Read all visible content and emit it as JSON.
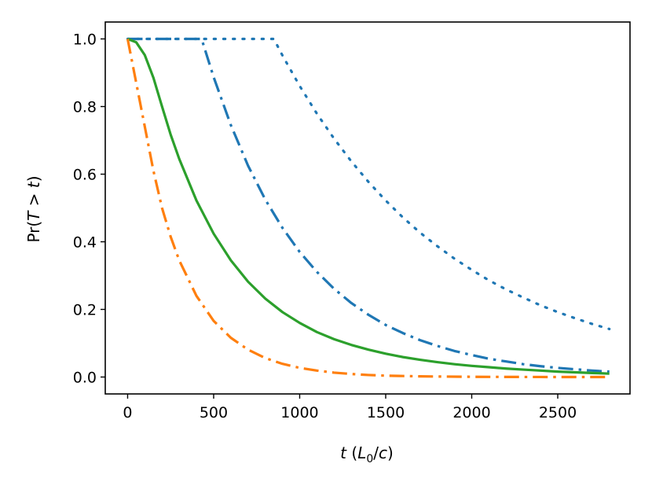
{
  "chart_data": {
    "type": "line",
    "title": "",
    "xlabel": {
      "italic_var": "t",
      "open": " (",
      "sym": "L",
      "sub": "0",
      "rest": "/",
      "italic_c": "c",
      "close": ")"
    },
    "ylabel": {
      "prefix": "Pr(",
      "T": "T",
      "op": " > ",
      "t": "t",
      "suffix": ")"
    },
    "xlim": [
      -130,
      2920
    ],
    "ylim": [
      -0.05,
      1.05
    ],
    "xticks": [
      0,
      500,
      1000,
      1500,
      2000,
      2500
    ],
    "xtick_labels": [
      "0",
      "500",
      "1000",
      "1500",
      "2000",
      "2500"
    ],
    "yticks": [
      0.0,
      0.2,
      0.4,
      0.6,
      0.8,
      1.0
    ],
    "ytick_labels": [
      "0.0",
      "0.2",
      "0.4",
      "0.6",
      "0.8",
      "1.0"
    ],
    "grid": false,
    "legend": null,
    "series": [
      {
        "color": "#1f77b4",
        "style": "dotted",
        "x": [
          0,
          850,
          900,
          1000,
          1100,
          1200,
          1300,
          1400,
          1500,
          1600,
          1700,
          1800,
          1900,
          2000,
          2100,
          2200,
          2300,
          2400,
          2500,
          2600,
          2700,
          2800
        ],
        "y": [
          1.0,
          1.0,
          0.951,
          0.861,
          0.779,
          0.705,
          0.638,
          0.577,
          0.522,
          0.472,
          0.427,
          0.387,
          0.35,
          0.317,
          0.286,
          0.259,
          0.235,
          0.212,
          0.192,
          0.174,
          0.157,
          0.142
        ]
      },
      {
        "color": "#1f77b4",
        "style": "dashdot",
        "x": [
          0,
          430,
          500,
          600,
          700,
          800,
          900,
          1000,
          1100,
          1200,
          1300,
          1400,
          1500,
          1600,
          1700,
          1800,
          1900,
          2000,
          2100,
          2200,
          2300,
          2400,
          2500,
          2600,
          2700,
          2800
        ],
        "y": [
          1.0,
          1.0,
          0.887,
          0.745,
          0.625,
          0.525,
          0.441,
          0.37,
          0.311,
          0.261,
          0.219,
          0.184,
          0.154,
          0.13,
          0.109,
          0.092,
          0.077,
          0.065,
          0.054,
          0.046,
          0.038,
          0.032,
          0.027,
          0.023,
          0.019,
          0.016
        ]
      },
      {
        "color": "#2ca02c",
        "style": "solid",
        "x": [
          0,
          50,
          100,
          150,
          200,
          250,
          300,
          400,
          500,
          600,
          700,
          800,
          900,
          1000,
          1100,
          1200,
          1300,
          1400,
          1500,
          1600,
          1700,
          1800,
          1900,
          2000,
          2100,
          2200,
          2300,
          2400,
          2500,
          2600,
          2700,
          2800
        ],
        "y": [
          1.0,
          0.99,
          0.952,
          0.885,
          0.8,
          0.717,
          0.645,
          0.522,
          0.424,
          0.345,
          0.282,
          0.232,
          0.192,
          0.16,
          0.133,
          0.112,
          0.095,
          0.081,
          0.069,
          0.059,
          0.051,
          0.044,
          0.038,
          0.033,
          0.029,
          0.025,
          0.022,
          0.019,
          0.016,
          0.014,
          0.012,
          0.01
        ]
      },
      {
        "color": "#ff7f0e",
        "style": "dashdot",
        "x": [
          0,
          50,
          100,
          150,
          200,
          250,
          300,
          400,
          500,
          600,
          700,
          800,
          900,
          1000,
          1100,
          1200,
          1300,
          1400,
          1500,
          1600,
          1700,
          1800,
          2000,
          2200,
          2400,
          2600,
          2800
        ],
        "y": [
          1.0,
          0.87,
          0.74,
          0.61,
          0.5,
          0.415,
          0.345,
          0.24,
          0.166,
          0.116,
          0.081,
          0.056,
          0.039,
          0.027,
          0.019,
          0.013,
          0.009,
          0.006,
          0.004,
          0.003,
          0.002,
          0.0015,
          0.0007,
          0.0003,
          0.0001,
          0.0,
          0.0
        ]
      }
    ],
    "series_note_hidden": ""
  }
}
